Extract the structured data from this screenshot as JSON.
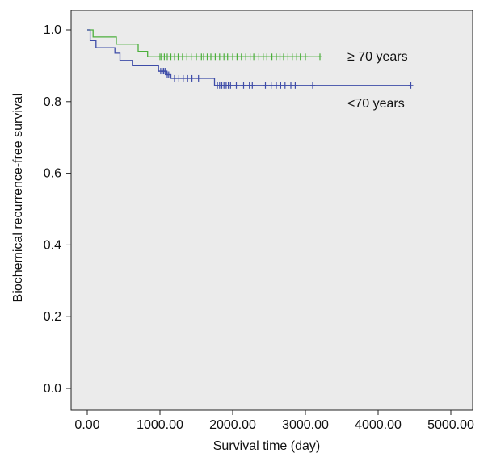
{
  "chart_data": {
    "type": "line",
    "subtype": "kaplan-meier",
    "title": "",
    "xlabel": "Survival time (day)",
    "ylabel": "Biochemical recurrence-free survival",
    "xlim": [
      0,
      5000
    ],
    "ylim": [
      0,
      1.0
    ],
    "x_ticks": [
      0,
      1000,
      2000,
      3000,
      4000,
      5000
    ],
    "x_tick_labels": [
      "0.00",
      "1000.00",
      "2000.00",
      "3000.00",
      "4000.00",
      "5000.00"
    ],
    "y_ticks": [
      0,
      0.2,
      0.4,
      0.6,
      0.8,
      1.0
    ],
    "y_tick_labels": [
      "0.0",
      "0.2",
      "0.4",
      "0.6",
      "0.8",
      "1.0"
    ],
    "grid": false,
    "background": "#ebebeb",
    "series": [
      {
        "name": "≥ 70 years",
        "color": "#4caf3c",
        "steps": [
          [
            0,
            1.0
          ],
          [
            80,
            0.98
          ],
          [
            400,
            0.96
          ],
          [
            700,
            0.94
          ],
          [
            830,
            0.925
          ],
          [
            3200,
            0.925
          ]
        ],
        "censored": [
          1000,
          1020,
          1060,
          1100,
          1150,
          1200,
          1250,
          1310,
          1370,
          1430,
          1500,
          1570,
          1600,
          1650,
          1700,
          1760,
          1820,
          1880,
          1930,
          2000,
          2060,
          2120,
          2180,
          2240,
          2290,
          2360,
          2420,
          2470,
          2540,
          2600,
          2650,
          2700,
          2760,
          2820,
          2880,
          2930,
          3000,
          3200
        ]
      },
      {
        "name": "<70 years",
        "color": "#3e4ca8",
        "steps": [
          [
            0,
            1.0
          ],
          [
            40,
            0.97
          ],
          [
            120,
            0.95
          ],
          [
            380,
            0.935
          ],
          [
            450,
            0.915
          ],
          [
            620,
            0.9
          ],
          [
            980,
            0.885
          ],
          [
            1090,
            0.875
          ],
          [
            1150,
            0.865
          ],
          [
            1750,
            0.845
          ],
          [
            4450,
            0.845
          ]
        ],
        "censored": [
          1010,
          1030,
          1050,
          1070,
          1100,
          1120,
          1200,
          1260,
          1320,
          1380,
          1440,
          1530,
          1790,
          1820,
          1850,
          1880,
          1910,
          1940,
          1970,
          2050,
          2150,
          2230,
          2270,
          2450,
          2530,
          2600,
          2660,
          2720,
          2800,
          2860,
          3100,
          4450
        ]
      }
    ]
  }
}
